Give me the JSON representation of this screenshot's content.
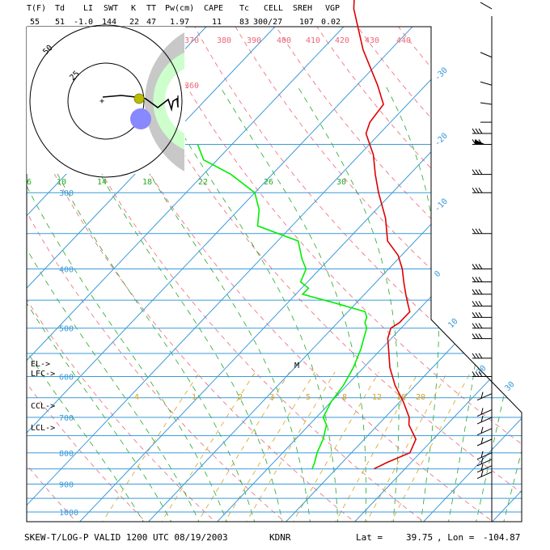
{
  "header": {
    "labels": [
      "T(F)",
      "Td",
      "LI",
      "SWT",
      "K",
      "TT",
      "Pw(cm)",
      "CAPE",
      "Tc",
      "CELL",
      "SREH",
      "VGP"
    ],
    "values": [
      "55",
      "51",
      "-1.0",
      "144",
      "22",
      "47",
      "1.97",
      "11",
      "83",
      "300/27",
      "107",
      "0.02"
    ]
  },
  "footer": {
    "title": "SKEW-T/LOG-P VALID 1200 UTC 08/19/2003",
    "station": "KDNR",
    "lat_label": "Lat =",
    "lat": "39.75",
    "lon_label": ", Lon =",
    "lon": "-104.87"
  },
  "chart_data": {
    "type": "line",
    "title": "SKEW-T/LOG-P VALID 1200 UTC 08/19/2003",
    "y_axis": "pressure (hPa), log scale, inverted",
    "pressure_levels": [
      300,
      400,
      500,
      600,
      700,
      800,
      900,
      1000
    ],
    "pressure_labels": [
      "300",
      "400",
      "500",
      "600",
      "700",
      "800",
      "900",
      "1000"
    ],
    "isotherm_labels": [
      "-30",
      "-20",
      "-10",
      "0",
      "10",
      "20",
      "30"
    ],
    "theta_labels": [
      "370",
      "380",
      "390",
      "400",
      "410",
      "420",
      "430",
      "440",
      "360"
    ],
    "theta_e_labels": [
      "6",
      "10",
      "14",
      "18",
      "22",
      "26",
      "30"
    ],
    "mixing_ratio_labels": [
      "4",
      "1",
      "2",
      "3",
      "5",
      "8",
      "12",
      "16",
      "20"
    ],
    "parcel_labels": [
      "EL->",
      "LFC->",
      "CCL->",
      "LCL->"
    ],
    "level_marker": "M",
    "series": [
      {
        "name": "",
        "color": "#dd0000",
        "pressure": [
          850,
          830,
          800,
          760,
          720,
          700,
          660,
          620,
          580,
          540,
          520,
          500,
          490,
          480,
          470,
          460,
          440,
          420,
          400,
          380,
          360,
          330,
          300,
          280,
          260,
          240,
          230,
          215,
          200,
          175,
          150,
          130,
          120,
          108,
          102
        ],
        "temperature": [
          15.5,
          16.5,
          18.5,
          17.5,
          14.5,
          13.5,
          10.5,
          7.0,
          3.8,
          1.0,
          -0.5,
          -1.5,
          -1.0,
          -1.0,
          -1.0,
          -2.0,
          -4.0,
          -6.0,
          -8.0,
          -10.5,
          -14.0,
          -17.5,
          -22.0,
          -25.0,
          -28.0,
          -32.0,
          -33.0,
          -33.5,
          -37.0,
          -44.0,
          -51.0,
          -56.0,
          -58.5,
          -60.0,
          -60.0
        ]
      },
      {
        "name": "",
        "color": "#00ee00",
        "pressure": [
          850,
          830,
          800,
          760,
          720,
          700,
          660,
          620,
          580,
          540,
          520,
          500,
          490,
          480,
          470,
          455,
          440,
          430,
          420,
          400,
          385,
          360,
          340,
          320,
          300,
          280,
          265,
          250
        ],
        "dewpoint": [
          6.5,
          6.0,
          5.0,
          4.0,
          2.5,
          1.0,
          0.0,
          -0.5,
          -1.5,
          -3.0,
          -4.0,
          -5.0,
          -6.0,
          -6.5,
          -7.5,
          -13.0,
          -19.0,
          -19.0,
          -21.0,
          -22.0,
          -24.0,
          -27.0,
          -35.0,
          -37.0,
          -40.0,
          -46.0,
          -52.0,
          -55.0
        ]
      }
    ],
    "wind_barbs_pressure": [
      110,
      150,
      180,
      200,
      215,
      230,
      240,
      250,
      280,
      300,
      350,
      400,
      420,
      440,
      460,
      480,
      500,
      520,
      560,
      600,
      640,
      680,
      700,
      730,
      760,
      800,
      820,
      840,
      860
    ],
    "hodograph": {
      "ring_labels": [
        "25",
        "50"
      ],
      "mark": "+"
    }
  }
}
